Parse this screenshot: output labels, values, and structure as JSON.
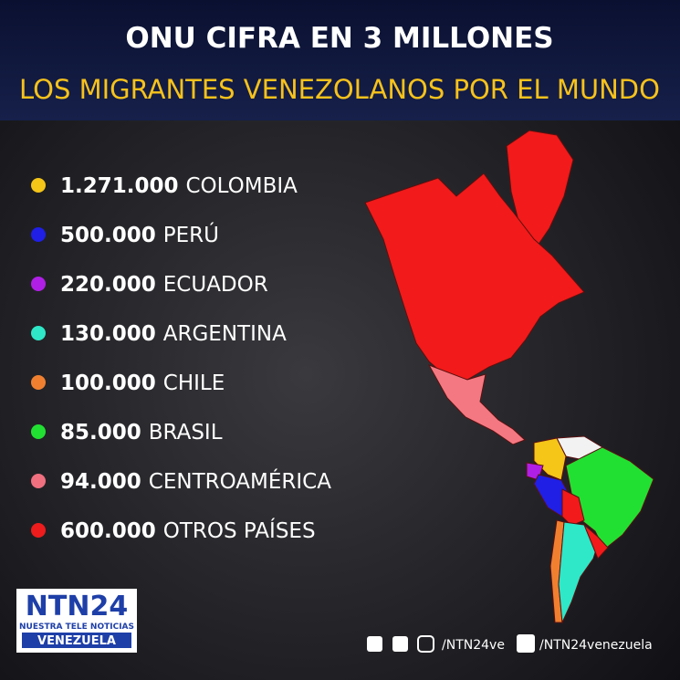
{
  "header": {
    "title": "ONU CIFRA EN 3 MILLONES",
    "subtitle": "LOS MIGRANTES VENEZOLANOS POR EL MUNDO"
  },
  "items": [
    {
      "amount": "1.271.000",
      "place": "COLOMBIA",
      "color": "#f5c518"
    },
    {
      "amount": "500.000",
      "place": "PERÚ",
      "color": "#1f1fe6"
    },
    {
      "amount": "220.000",
      "place": "ECUADOR",
      "color": "#b01fe6"
    },
    {
      "amount": "130.000",
      "place": "ARGENTINA",
      "color": "#2ee8c8"
    },
    {
      "amount": "100.000",
      "place": "CHILE",
      "color": "#f08030"
    },
    {
      "amount": "85.000",
      "place": "BRASIL",
      "color": "#22e032"
    },
    {
      "amount": "94.000",
      "place": "CENTROAMÉRICA",
      "color": "#f07080"
    },
    {
      "amount": "600.000",
      "place": "OTROS PAÍSES",
      "color": "#ee1c1c"
    }
  ],
  "logo": {
    "name": "NTN24",
    "tagline": "NUESTRA TELE NOTICIAS",
    "region": "VENEZUELA"
  },
  "social": {
    "twitter": "/NTN24ve",
    "youtube": "/NTN24venezuela"
  }
}
